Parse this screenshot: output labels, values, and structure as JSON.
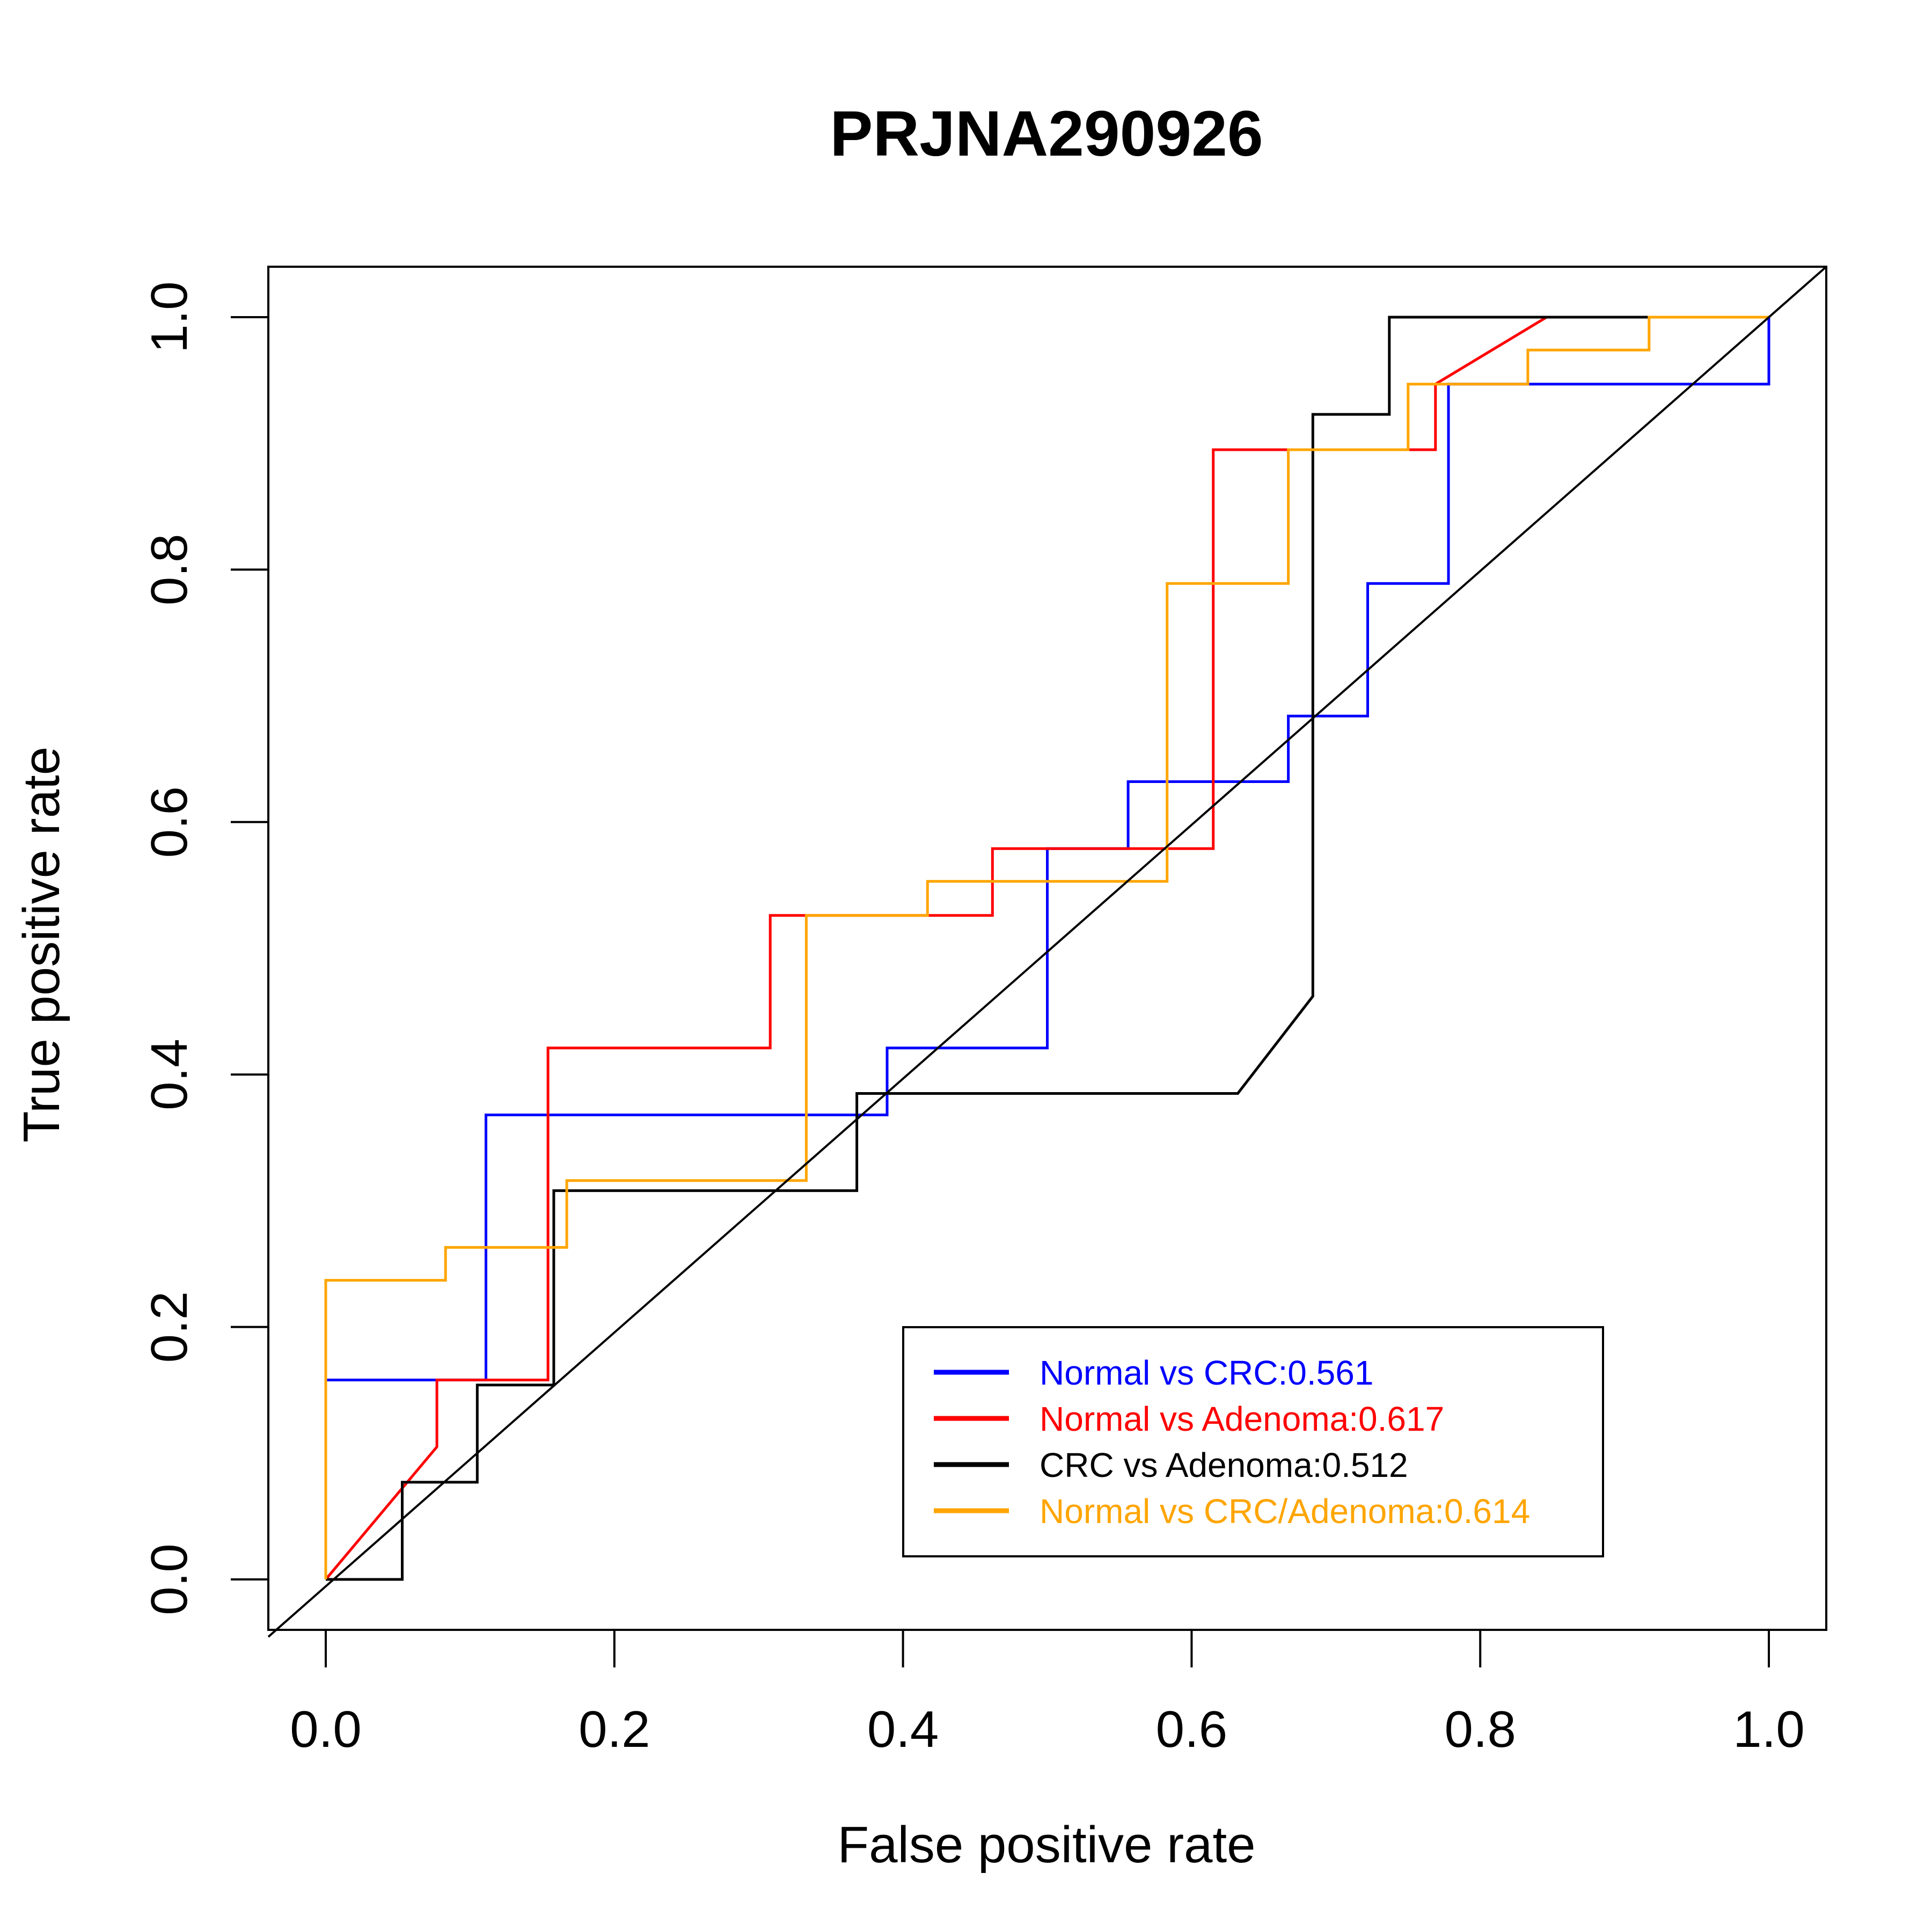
{
  "chart_data": {
    "type": "line",
    "title": "PRJNA290926",
    "xlabel": "False positive rate",
    "ylabel": "True positive rate",
    "xlim": [
      0,
      1
    ],
    "ylim": [
      0,
      1
    ],
    "x_ticks": [
      "0.0",
      "0.2",
      "0.4",
      "0.6",
      "0.8",
      "1.0"
    ],
    "y_ticks": [
      "0.0",
      "0.2",
      "0.4",
      "0.6",
      "0.8",
      "1.0"
    ],
    "grid": false,
    "legend_position": "bottom-right",
    "series": [
      {
        "name": "Normal vs CRC:0.561",
        "color": "#0000ff",
        "points": [
          [
            0,
            0
          ],
          [
            0,
            0.158
          ],
          [
            0.111,
            0.158
          ],
          [
            0.111,
            0.368
          ],
          [
            0.389,
            0.368
          ],
          [
            0.389,
            0.421
          ],
          [
            0.5,
            0.421
          ],
          [
            0.5,
            0.579
          ],
          [
            0.556,
            0.579
          ],
          [
            0.556,
            0.632
          ],
          [
            0.667,
            0.632
          ],
          [
            0.667,
            0.684
          ],
          [
            0.722,
            0.684
          ],
          [
            0.722,
            0.789
          ],
          [
            0.778,
            0.789
          ],
          [
            0.778,
            0.947
          ],
          [
            1.0,
            0.947
          ],
          [
            1.0,
            1.0
          ]
        ]
      },
      {
        "name": "Normal vs Adenoma:0.617",
        "color": "#ff0000",
        "points": [
          [
            0,
            0
          ],
          [
            0.077,
            0.105
          ],
          [
            0.077,
            0.158
          ],
          [
            0.154,
            0.158
          ],
          [
            0.154,
            0.421
          ],
          [
            0.308,
            0.421
          ],
          [
            0.308,
            0.526
          ],
          [
            0.462,
            0.526
          ],
          [
            0.462,
            0.579
          ],
          [
            0.615,
            0.579
          ],
          [
            0.615,
            0.895
          ],
          [
            0.769,
            0.895
          ],
          [
            0.769,
            0.947
          ],
          [
            0.846,
            1.0
          ],
          [
            1.0,
            1.0
          ]
        ]
      },
      {
        "name": "CRC vs Adenoma:0.512",
        "color": "#000000",
        "points": [
          [
            0,
            0
          ],
          [
            0.053,
            0
          ],
          [
            0.053,
            0.077
          ],
          [
            0.105,
            0.077
          ],
          [
            0.105,
            0.154
          ],
          [
            0.158,
            0.154
          ],
          [
            0.158,
            0.308
          ],
          [
            0.368,
            0.308
          ],
          [
            0.368,
            0.385
          ],
          [
            0.632,
            0.385
          ],
          [
            0.684,
            0.462
          ],
          [
            0.684,
            0.923
          ],
          [
            0.737,
            0.923
          ],
          [
            0.737,
            1.0
          ],
          [
            1.0,
            1.0
          ]
        ]
      },
      {
        "name": "Normal vs CRC/Adenoma:0.614",
        "color": "#ffa500",
        "points": [
          [
            0,
            0
          ],
          [
            0,
            0.237
          ],
          [
            0.083,
            0.237
          ],
          [
            0.083,
            0.263
          ],
          [
            0.167,
            0.263
          ],
          [
            0.167,
            0.316
          ],
          [
            0.333,
            0.316
          ],
          [
            0.333,
            0.526
          ],
          [
            0.417,
            0.526
          ],
          [
            0.417,
            0.553
          ],
          [
            0.583,
            0.553
          ],
          [
            0.583,
            0.789
          ],
          [
            0.667,
            0.789
          ],
          [
            0.667,
            0.895
          ],
          [
            0.75,
            0.895
          ],
          [
            0.75,
            0.947
          ],
          [
            0.833,
            0.947
          ],
          [
            0.833,
            0.974
          ],
          [
            0.917,
            0.974
          ],
          [
            0.917,
            1.0
          ],
          [
            1.0,
            1.0
          ]
        ]
      }
    ],
    "reference_line": {
      "color": "#000000",
      "points": [
        [
          0,
          0
        ],
        [
          1,
          1
        ]
      ]
    }
  }
}
